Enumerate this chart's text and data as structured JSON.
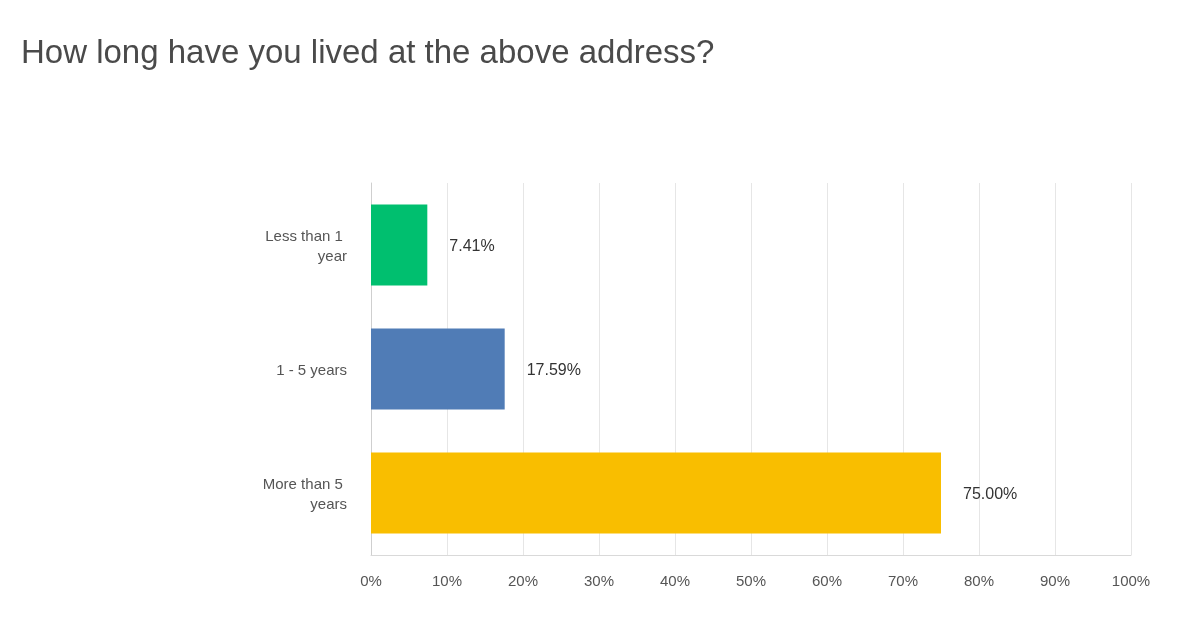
{
  "chart_data": {
    "type": "bar",
    "orientation": "horizontal",
    "title": "How long have you lived at the above address?",
    "categories": [
      "Less than 1 year",
      "1 - 5 years",
      "More than 5 years"
    ],
    "values": [
      7.41,
      17.59,
      75.0
    ],
    "colors": [
      "#00bf6f",
      "#507cb6",
      "#f9be00"
    ],
    "value_labels": [
      "7.41%",
      "17.59%",
      "75.00%"
    ],
    "xlim": [
      0,
      100
    ],
    "xticks": [
      {
        "value": 0,
        "label": "0%"
      },
      {
        "value": 10,
        "label": "10%"
      },
      {
        "value": 20,
        "label": "20%"
      },
      {
        "value": 30,
        "label": "30%"
      },
      {
        "value": 40,
        "label": "40%"
      },
      {
        "value": 50,
        "label": "50%"
      },
      {
        "value": 60,
        "label": "60%"
      },
      {
        "value": 70,
        "label": "70%"
      },
      {
        "value": 80,
        "label": "80%"
      },
      {
        "value": 90,
        "label": "90%"
      },
      {
        "value": 100,
        "label": "100%"
      }
    ],
    "grid": "x"
  }
}
